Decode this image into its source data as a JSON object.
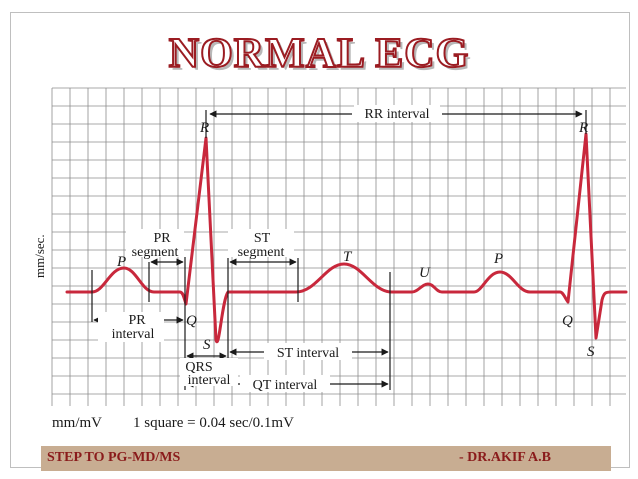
{
  "title": "NORMAL ECG",
  "y_axis_label": "mm/sec.",
  "scale_note": {
    "unit": "mm/mV",
    "square": "1 square = 0.04 sec/0.1mV"
  },
  "waves": {
    "p1": "P",
    "q1": "Q",
    "r1": "R",
    "s1": "S",
    "t": "T",
    "u": "U",
    "p2": "P",
    "q2": "Q",
    "r2": "R",
    "s2": "S"
  },
  "intervals": {
    "rr": "RR interval",
    "pr_segment_line1": "PR",
    "pr_segment_line2": "segment",
    "st_segment_line1": "ST",
    "st_segment_line2": "segment",
    "pr_interval_line1": "PR",
    "pr_interval_line2": "interval",
    "qrs_line1": "QRS",
    "qrs_line2": "interval",
    "st_interval": "ST interval",
    "qt_interval": "QT interval"
  },
  "footer": {
    "left": "STEP TO PG-MD/MS",
    "right": "- DR.AKIF A.B"
  },
  "colors": {
    "trace": "#c8283c",
    "grid": "#8c8c8c",
    "title_outline": "#9b1c22",
    "footer_bg": "#c8ad92",
    "footer_text": "#8a1b1b"
  }
}
